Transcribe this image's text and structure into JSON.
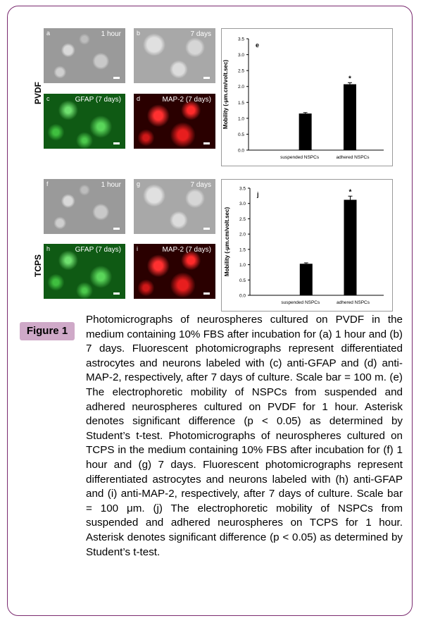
{
  "rows": [
    {
      "label": "PVDF",
      "panels": [
        {
          "letter": "a",
          "tag": "1 hour",
          "style": "phase"
        },
        {
          "letter": "b",
          "tag": "7 days",
          "style": "phase2"
        },
        {
          "letter": "c",
          "tag": "GFAP (7 days)",
          "style": "green"
        },
        {
          "letter": "d",
          "tag": "MAP-2 (7 days)",
          "style": "red"
        }
      ]
    },
    {
      "label": "TCPS",
      "panels": [
        {
          "letter": "f",
          "tag": "1 hour",
          "style": "phase"
        },
        {
          "letter": "g",
          "tag": "7 days",
          "style": "phase2"
        },
        {
          "letter": "h",
          "tag": "GFAP (7 days)",
          "style": "green"
        },
        {
          "letter": "i",
          "tag": "MAP-2 (7 days)",
          "style": "red"
        }
      ]
    }
  ],
  "chart_data": [
    {
      "type": "bar",
      "panel_letter": "e",
      "categories": [
        "suspended NSPCs",
        "adhered NSPCs"
      ],
      "values": [
        1.15,
        2.07
      ],
      "errors": [
        0.03,
        0.05
      ],
      "significance": [
        "",
        "*"
      ],
      "ylabel": "Mobility (-μm.cm/volt.sec)",
      "xlabel": "",
      "ylim": [
        0,
        3.5
      ],
      "yticks": [
        "0.0",
        "0.5",
        "1.0",
        "1.5",
        "2.0",
        "2.5",
        "3.0",
        "3.5"
      ],
      "grid": false
    },
    {
      "type": "bar",
      "panel_letter": "j",
      "categories": [
        "suspended NSPCs",
        "adhered NSPCs"
      ],
      "values": [
        1.03,
        3.12
      ],
      "errors": [
        0.03,
        0.12
      ],
      "significance": [
        "",
        "*"
      ],
      "ylabel": "Mobility (-μm.cm/volt.sec)",
      "xlabel": "",
      "ylim": [
        0,
        3.5
      ],
      "yticks": [
        "0.0",
        "0.5",
        "1.0",
        "1.5",
        "2.0",
        "2.5",
        "3.0",
        "3.5"
      ],
      "grid": false
    }
  ],
  "figure": {
    "label": "Figure 1",
    "caption": "Photomicrographs of neurospheres cultured on PVDF in the medium containing 10% FBS after incubation for (a) 1 hour and (b) 7 days. Fluorescent photomicrographs represent differentiated astrocytes and neurons labeled with (c) anti-GFAP and (d) anti-MAP-2, respectively, after 7 days of culture. Scale bar = 100 m. (e) The electrophoretic mobility of NSPCs from suspended and adhered neurospheres cultured on PVDF for 1 hour. Asterisk denotes significant difference (p < 0.05) as determined by Student’s t-test. Photomicrographs of neurospheres cultured on TCPS in the medium containing 10% FBS after incubation for (f) 1 hour and (g) 7 days. Fluorescent photomicrographs represent differentiated astrocytes and neurons labeled with (h) anti-GFAP and (i) anti-MAP-2, respectively, after 7 days of culture. Scale bar = 100 μm. (j) The electrophoretic mobility of NSPCs from suspended and adhered neurospheres on TCPS for 1 hour. Asterisk denotes significant difference (p < 0.05) as determined by Student’s t-test."
  },
  "colors": {
    "frame": "#7a2a6f",
    "figure_label_bg": "#cfa9c8",
    "bar": "#000000"
  }
}
